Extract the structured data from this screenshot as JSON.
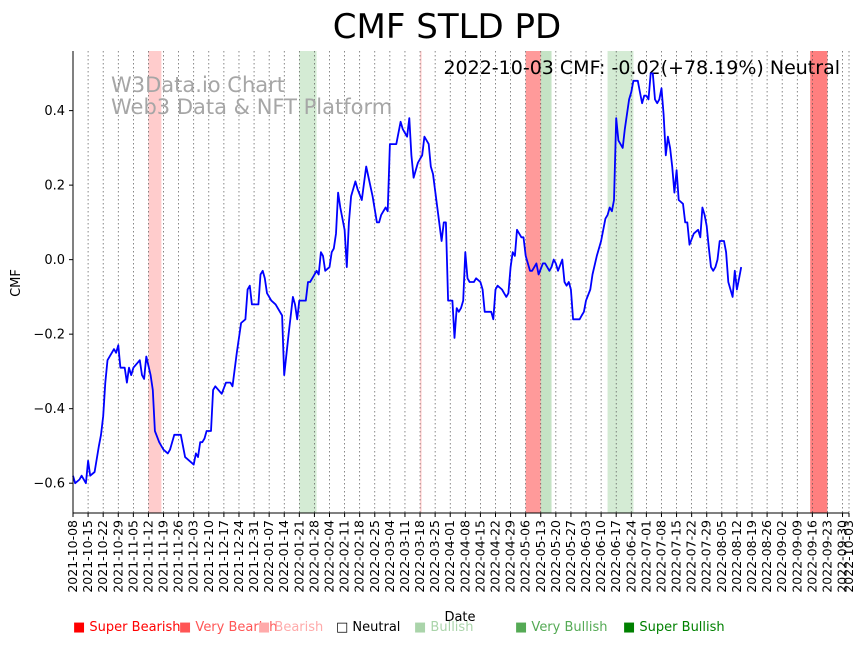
{
  "chart_data": {
    "type": "line",
    "title": "CMF STLD PD",
    "xlabel": "Date",
    "ylabel": "CMF",
    "ylim": [
      -0.68,
      0.56
    ],
    "yticks": [
      -0.6,
      -0.4,
      -0.2,
      0.0,
      0.2,
      0.4
    ],
    "ytick_labels": [
      "−0.6",
      "−0.4",
      "−0.2",
      "0.0",
      "0.2",
      "0.4"
    ],
    "annotation": "2022-10-03 CMF: -0.02(+78.19%) Neutral",
    "watermark": [
      "W3Data.io Chart",
      "Web3 Data & NFT Platform"
    ],
    "x_start": "2021-10-08",
    "x_end": "2022-10-03",
    "xtick_labels": [
      "2021-10-08",
      "2021-10-15",
      "2021-10-22",
      "2021-10-29",
      "2021-11-05",
      "2021-11-12",
      "2021-11-19",
      "2021-11-26",
      "2021-12-03",
      "2021-12-10",
      "2021-12-17",
      "2021-12-24",
      "2021-12-31",
      "2022-01-07",
      "2022-01-14",
      "2022-01-21",
      "2022-01-28",
      "2022-02-04",
      "2022-02-11",
      "2022-02-18",
      "2022-02-25",
      "2022-03-04",
      "2022-03-11",
      "2022-03-18",
      "2022-03-25",
      "2022-04-01",
      "2022-04-08",
      "2022-04-15",
      "2022-04-22",
      "2022-04-29",
      "2022-05-06",
      "2022-05-13",
      "2022-05-20",
      "2022-05-27",
      "2022-06-03",
      "2022-06-10",
      "2022-06-17",
      "2022-06-24",
      "2022-07-01",
      "2022-07-08",
      "2022-07-15",
      "2022-07-22",
      "2022-07-29",
      "2022-08-05",
      "2022-08-12",
      "2022-08-19",
      "2022-08-26",
      "2022-09-02",
      "2022-09-09",
      "2022-09-16",
      "2022-09-23",
      "2022-09-30",
      "2022-10-03"
    ],
    "series": [
      {
        "name": "CMF",
        "color": "#0000ff",
        "points": [
          [
            "2021-10-08",
            -0.58
          ],
          [
            "2021-10-09",
            -0.6
          ],
          [
            "2021-10-11",
            -0.59
          ],
          [
            "2021-10-12",
            -0.58
          ],
          [
            "2021-10-14",
            -0.6
          ],
          [
            "2021-10-15",
            -0.54
          ],
          [
            "2021-10-16",
            -0.58
          ],
          [
            "2021-10-18",
            -0.57
          ],
          [
            "2021-10-20",
            -0.5
          ],
          [
            "2021-10-21",
            -0.47
          ],
          [
            "2021-10-22",
            -0.42
          ],
          [
            "2021-10-23",
            -0.33
          ],
          [
            "2021-10-24",
            -0.27
          ],
          [
            "2021-10-26",
            -0.25
          ],
          [
            "2021-10-27",
            -0.24
          ],
          [
            "2021-10-28",
            -0.25
          ],
          [
            "2021-10-29",
            -0.23
          ],
          [
            "2021-10-30",
            -0.29
          ],
          [
            "2021-11-01",
            -0.29
          ],
          [
            "2021-11-02",
            -0.33
          ],
          [
            "2021-11-03",
            -0.29
          ],
          [
            "2021-11-04",
            -0.31
          ],
          [
            "2021-11-05",
            -0.29
          ],
          [
            "2021-11-08",
            -0.27
          ],
          [
            "2021-11-09",
            -0.31
          ],
          [
            "2021-11-10",
            -0.32
          ],
          [
            "2021-11-11",
            -0.26
          ],
          [
            "2021-11-13",
            -0.31
          ],
          [
            "2021-11-14",
            -0.35
          ],
          [
            "2021-11-15",
            -0.46
          ],
          [
            "2021-11-17",
            -0.49
          ],
          [
            "2021-11-19",
            -0.51
          ],
          [
            "2021-11-21",
            -0.52
          ],
          [
            "2021-11-22",
            -0.51
          ],
          [
            "2021-11-24",
            -0.47
          ],
          [
            "2021-11-26",
            -0.47
          ],
          [
            "2021-11-27",
            -0.47
          ],
          [
            "2021-11-29",
            -0.53
          ],
          [
            "2021-12-01",
            -0.54
          ],
          [
            "2021-12-03",
            -0.55
          ],
          [
            "2021-12-04",
            -0.52
          ],
          [
            "2021-12-05",
            -0.53
          ],
          [
            "2021-12-06",
            -0.49
          ],
          [
            "2021-12-07",
            -0.49
          ],
          [
            "2021-12-08",
            -0.48
          ],
          [
            "2021-12-09",
            -0.46
          ],
          [
            "2021-12-11",
            -0.46
          ],
          [
            "2021-12-12",
            -0.35
          ],
          [
            "2021-12-13",
            -0.34
          ],
          [
            "2021-12-16",
            -0.36
          ],
          [
            "2021-12-18",
            -0.33
          ],
          [
            "2021-12-20",
            -0.33
          ],
          [
            "2021-12-21",
            -0.34
          ],
          [
            "2021-12-23",
            -0.25
          ],
          [
            "2021-12-25",
            -0.17
          ],
          [
            "2021-12-27",
            -0.16
          ],
          [
            "2021-12-28",
            -0.08
          ],
          [
            "2021-12-29",
            -0.07
          ],
          [
            "2021-12-30",
            -0.12
          ],
          [
            "2022-01-01",
            -0.12
          ],
          [
            "2022-01-02",
            -0.12
          ],
          [
            "2022-01-03",
            -0.04
          ],
          [
            "2022-01-04",
            -0.03
          ],
          [
            "2022-01-05",
            -0.05
          ],
          [
            "2022-01-06",
            -0.09
          ],
          [
            "2022-01-08",
            -0.11
          ],
          [
            "2022-01-10",
            -0.12
          ],
          [
            "2022-01-13",
            -0.15
          ],
          [
            "2022-01-14",
            -0.31
          ],
          [
            "2022-01-16",
            -0.2
          ],
          [
            "2022-01-18",
            -0.1
          ],
          [
            "2022-01-19",
            -0.12
          ],
          [
            "2022-01-20",
            -0.16
          ],
          [
            "2022-01-21",
            -0.11
          ],
          [
            "2022-01-24",
            -0.11
          ],
          [
            "2022-01-25",
            -0.06
          ],
          [
            "2022-01-26",
            -0.06
          ],
          [
            "2022-01-27",
            -0.05
          ],
          [
            "2022-01-29",
            -0.03
          ],
          [
            "2022-01-30",
            -0.04
          ],
          [
            "2022-01-31",
            0.02
          ],
          [
            "2022-02-01",
            0.01
          ],
          [
            "2022-02-02",
            -0.03
          ],
          [
            "2022-02-04",
            -0.02
          ],
          [
            "2022-02-05",
            0.02
          ],
          [
            "2022-02-06",
            0.03
          ],
          [
            "2022-02-07",
            0.07
          ],
          [
            "2022-02-08",
            0.18
          ],
          [
            "2022-02-09",
            0.14
          ],
          [
            "2022-02-11",
            0.08
          ],
          [
            "2022-02-12",
            -0.02
          ],
          [
            "2022-02-13",
            0.1
          ],
          [
            "2022-02-14",
            0.17
          ],
          [
            "2022-02-16",
            0.21
          ],
          [
            "2022-02-17",
            0.19
          ],
          [
            "2022-02-19",
            0.16
          ],
          [
            "2022-02-21",
            0.25
          ],
          [
            "2022-02-24",
            0.17
          ],
          [
            "2022-02-26",
            0.1
          ],
          [
            "2022-02-27",
            0.1
          ],
          [
            "2022-02-28",
            0.12
          ],
          [
            "2022-03-02",
            0.14
          ],
          [
            "2022-03-03",
            0.13
          ],
          [
            "2022-03-04",
            0.31
          ],
          [
            "2022-03-05",
            0.31
          ],
          [
            "2022-03-07",
            0.31
          ],
          [
            "2022-03-09",
            0.37
          ],
          [
            "2022-03-10",
            0.35
          ],
          [
            "2022-03-11",
            0.34
          ],
          [
            "2022-03-12",
            0.33
          ],
          [
            "2022-03-13",
            0.38
          ],
          [
            "2022-03-14",
            0.28
          ],
          [
            "2022-03-15",
            0.22
          ],
          [
            "2022-03-17",
            0.26
          ],
          [
            "2022-03-18",
            0.27
          ],
          [
            "2022-03-19",
            0.28
          ],
          [
            "2022-03-20",
            0.33
          ],
          [
            "2022-03-22",
            0.31
          ],
          [
            "2022-03-23",
            0.25
          ],
          [
            "2022-03-24",
            0.23
          ],
          [
            "2022-03-26",
            0.14
          ],
          [
            "2022-03-28",
            0.05
          ],
          [
            "2022-03-29",
            0.1
          ],
          [
            "2022-03-30",
            0.1
          ],
          [
            "2022-03-31",
            -0.11
          ],
          [
            "2022-04-02",
            -0.11
          ],
          [
            "2022-04-03",
            -0.21
          ],
          [
            "2022-04-04",
            -0.13
          ],
          [
            "2022-04-05",
            -0.14
          ],
          [
            "2022-04-06",
            -0.13
          ],
          [
            "2022-04-07",
            -0.11
          ],
          [
            "2022-04-08",
            0.02
          ],
          [
            "2022-04-09",
            -0.05
          ],
          [
            "2022-04-10",
            -0.06
          ],
          [
            "2022-04-12",
            -0.06
          ],
          [
            "2022-04-13",
            -0.05
          ],
          [
            "2022-04-15",
            -0.06
          ],
          [
            "2022-04-16",
            -0.08
          ],
          [
            "2022-04-17",
            -0.14
          ],
          [
            "2022-04-20",
            -0.14
          ],
          [
            "2022-04-21",
            -0.16
          ],
          [
            "2022-04-22",
            -0.08
          ],
          [
            "2022-04-23",
            -0.07
          ],
          [
            "2022-04-25",
            -0.08
          ],
          [
            "2022-04-26",
            -0.09
          ],
          [
            "2022-04-27",
            -0.1
          ],
          [
            "2022-04-28",
            -0.09
          ],
          [
            "2022-04-29",
            -0.02
          ],
          [
            "2022-04-30",
            0.02
          ],
          [
            "2022-05-01",
            0.01
          ],
          [
            "2022-05-02",
            0.08
          ],
          [
            "2022-05-04",
            0.06
          ],
          [
            "2022-05-05",
            0.06
          ],
          [
            "2022-05-06",
            0.01
          ],
          [
            "2022-05-08",
            -0.03
          ],
          [
            "2022-05-09",
            -0.03
          ],
          [
            "2022-05-10",
            -0.02
          ],
          [
            "2022-05-11",
            -0.01
          ],
          [
            "2022-05-12",
            -0.04
          ],
          [
            "2022-05-14",
            -0.01
          ],
          [
            "2022-05-15",
            -0.01
          ],
          [
            "2022-05-17",
            -0.03
          ],
          [
            "2022-05-18",
            -0.02
          ],
          [
            "2022-05-19",
            0.0
          ],
          [
            "2022-05-20",
            -0.01
          ],
          [
            "2022-05-21",
            -0.03
          ],
          [
            "2022-05-23",
            0.0
          ],
          [
            "2022-05-24",
            -0.06
          ],
          [
            "2022-05-25",
            -0.07
          ],
          [
            "2022-05-26",
            -0.06
          ],
          [
            "2022-05-27",
            -0.08
          ],
          [
            "2022-05-28",
            -0.16
          ],
          [
            "2022-05-31",
            -0.16
          ],
          [
            "2022-06-01",
            -0.15
          ],
          [
            "2022-06-02",
            -0.14
          ],
          [
            "2022-06-03",
            -0.11
          ],
          [
            "2022-06-05",
            -0.08
          ],
          [
            "2022-06-06",
            -0.04
          ],
          [
            "2022-06-08",
            0.01
          ],
          [
            "2022-06-10",
            0.05
          ],
          [
            "2022-06-12",
            0.11
          ],
          [
            "2022-06-13",
            0.12
          ],
          [
            "2022-06-14",
            0.14
          ],
          [
            "2022-06-15",
            0.13
          ],
          [
            "2022-06-16",
            0.16
          ],
          [
            "2022-06-17",
            0.38
          ],
          [
            "2022-06-18",
            0.32
          ],
          [
            "2022-06-20",
            0.3
          ],
          [
            "2022-06-21",
            0.35
          ],
          [
            "2022-06-23",
            0.43
          ],
          [
            "2022-06-24",
            0.45
          ],
          [
            "2022-06-25",
            0.48
          ],
          [
            "2022-06-27",
            0.48
          ],
          [
            "2022-06-28",
            0.45
          ],
          [
            "2022-06-29",
            0.42
          ],
          [
            "2022-06-30",
            0.44
          ],
          [
            "2022-07-01",
            0.44
          ],
          [
            "2022-07-02",
            0.43
          ],
          [
            "2022-07-03",
            0.5
          ],
          [
            "2022-07-04",
            0.5
          ],
          [
            "2022-07-05",
            0.43
          ],
          [
            "2022-07-06",
            0.42
          ],
          [
            "2022-07-07",
            0.43
          ],
          [
            "2022-07-08",
            0.46
          ],
          [
            "2022-07-09",
            0.39
          ],
          [
            "2022-07-10",
            0.28
          ],
          [
            "2022-07-11",
            0.33
          ],
          [
            "2022-07-12",
            0.3
          ],
          [
            "2022-07-13",
            0.25
          ],
          [
            "2022-07-14",
            0.18
          ],
          [
            "2022-07-15",
            0.24
          ],
          [
            "2022-07-16",
            0.16
          ],
          [
            "2022-07-18",
            0.15
          ],
          [
            "2022-07-19",
            0.1
          ],
          [
            "2022-07-20",
            0.1
          ],
          [
            "2022-07-21",
            0.04
          ],
          [
            "2022-07-23",
            0.07
          ],
          [
            "2022-07-25",
            0.08
          ],
          [
            "2022-07-26",
            0.06
          ],
          [
            "2022-07-27",
            0.14
          ],
          [
            "2022-07-28",
            0.12
          ],
          [
            "2022-07-29",
            0.09
          ],
          [
            "2022-07-30",
            0.03
          ],
          [
            "2022-07-31",
            -0.02
          ],
          [
            "2022-08-01",
            -0.03
          ],
          [
            "2022-08-02",
            -0.02
          ],
          [
            "2022-08-03",
            0.0
          ],
          [
            "2022-08-04",
            0.05
          ],
          [
            "2022-08-06",
            0.05
          ],
          [
            "2022-08-07",
            0.02
          ],
          [
            "2022-08-08",
            -0.06
          ],
          [
            "2022-08-10",
            -0.1
          ],
          [
            "2022-08-11",
            -0.03
          ],
          [
            "2022-08-12",
            -0.08
          ],
          [
            "2022-08-13",
            -0.05
          ],
          [
            "2022-08-14",
            -0.02
          ]
        ]
      }
    ],
    "shaded_regions": [
      {
        "start": "2021-11-12",
        "end": "2021-11-18",
        "color": "#ffcccc"
      },
      {
        "start": "2022-01-21",
        "end": "2022-01-29",
        "color": "#d4ebd4"
      },
      {
        "start": "2022-03-18",
        "end": "2022-03-18",
        "color": "#ffcccc"
      },
      {
        "start": "2022-05-06",
        "end": "2022-05-13",
        "color": "#ff9a9a"
      },
      {
        "start": "2022-05-13",
        "end": "2022-05-18",
        "color": "#c5e3c5"
      },
      {
        "start": "2022-06-13",
        "end": "2022-06-25",
        "color": "#d4ebd4"
      },
      {
        "start": "2022-09-15",
        "end": "2022-09-23",
        "color": "#ff7f7f"
      }
    ],
    "legend": [
      {
        "label": "Super Bearish",
        "color": "#ff0000",
        "marker": "■"
      },
      {
        "label": "Very Bearish",
        "color": "#ff5555",
        "marker": "■"
      },
      {
        "label": "Bearish",
        "color": "#ffaaaa",
        "marker": "■"
      },
      {
        "label": "Neutral",
        "color": "#000000",
        "marker": "□"
      },
      {
        "label": "Bullish",
        "color": "#aad4aa",
        "marker": "■"
      },
      {
        "label": "Very Bullish",
        "color": "#55aa55",
        "marker": "■"
      },
      {
        "label": "Super Bullish",
        "color": "#008000",
        "marker": "■"
      }
    ]
  }
}
